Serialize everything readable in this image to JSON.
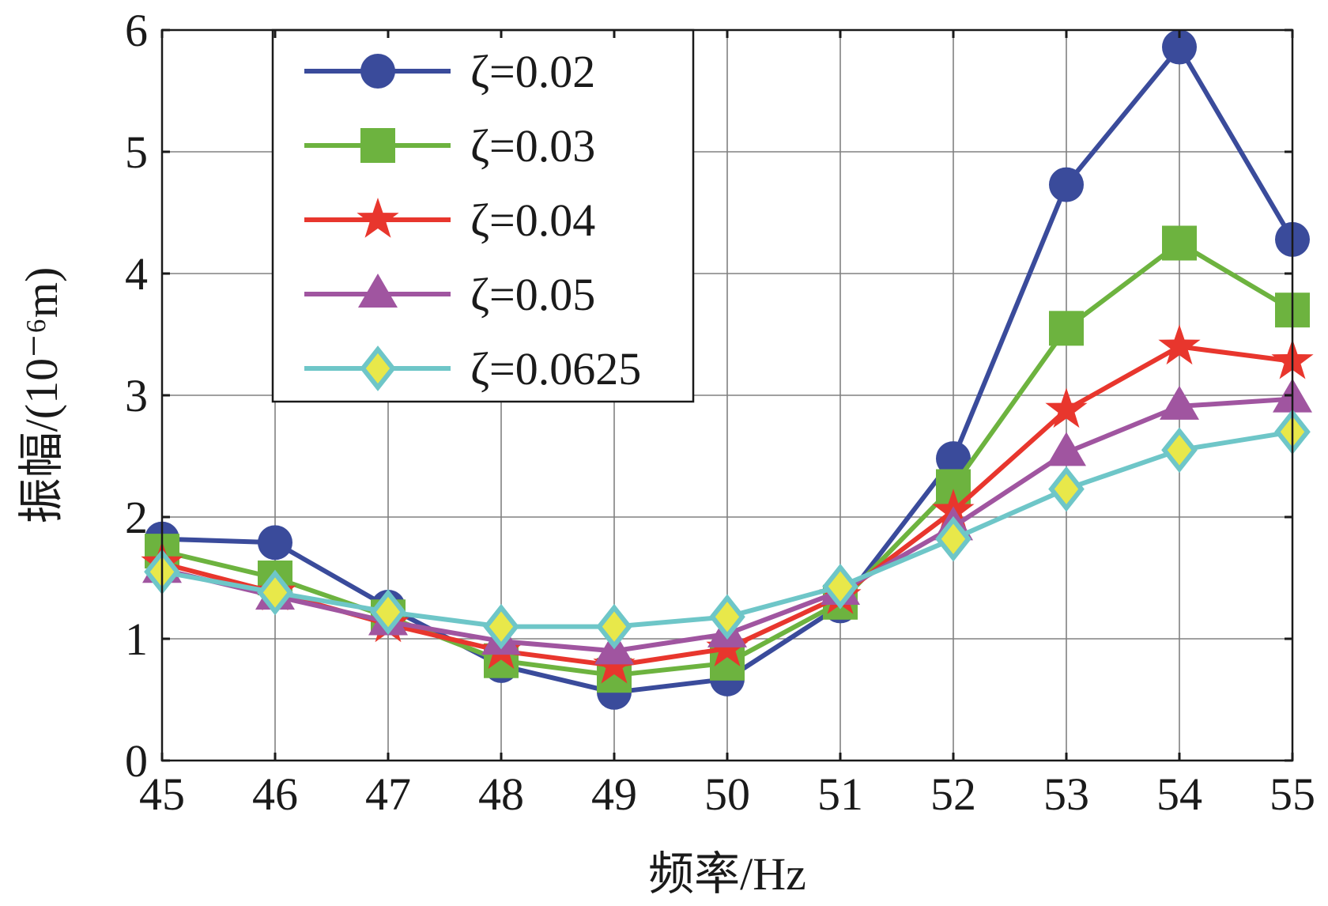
{
  "chart_data": {
    "type": "line",
    "title": "",
    "xlabel": "频率/Hz",
    "ylabel": "振幅/(10⁻⁶m)",
    "xlim": [
      45,
      55
    ],
    "ylim": [
      0,
      6
    ],
    "x_ticks": [
      "45",
      "46",
      "47",
      "48",
      "49",
      "50",
      "51",
      "52",
      "53",
      "54",
      "55"
    ],
    "y_ticks": [
      "0",
      "1",
      "2",
      "3",
      "4",
      "5",
      "6"
    ],
    "grid": true,
    "legend_position": "top-left",
    "x": [
      45,
      46,
      47,
      48,
      49,
      50,
      51,
      52,
      53,
      54,
      55
    ],
    "series": [
      {
        "name": "ζ=0.02",
        "color": "#3a4b9b",
        "marker": "circle",
        "values": [
          1.82,
          1.79,
          1.26,
          0.78,
          0.56,
          0.67,
          1.27,
          2.48,
          4.73,
          5.86,
          4.28
        ]
      },
      {
        "name": "ζ=0.03",
        "color": "#6db33f",
        "marker": "square",
        "values": [
          1.72,
          1.5,
          1.18,
          0.82,
          0.7,
          0.8,
          1.3,
          2.25,
          3.55,
          4.25,
          3.7
        ]
      },
      {
        "name": "ζ=0.04",
        "color": "#e8362d",
        "marker": "star",
        "values": [
          1.62,
          1.38,
          1.12,
          0.9,
          0.78,
          0.92,
          1.35,
          2.05,
          2.88,
          3.4,
          3.28
        ]
      },
      {
        "name": "ζ=0.05",
        "color": "#a055a0",
        "marker": "triangle",
        "values": [
          1.57,
          1.35,
          1.14,
          0.98,
          0.9,
          1.04,
          1.39,
          1.92,
          2.53,
          2.91,
          2.97
        ]
      },
      {
        "name": "ζ=0.0625",
        "color": "#6ec6c8",
        "marker": "diamond",
        "marker_fill": "#e8e84a",
        "values": [
          1.55,
          1.38,
          1.22,
          1.1,
          1.1,
          1.18,
          1.43,
          1.82,
          2.23,
          2.55,
          2.7
        ]
      }
    ]
  }
}
